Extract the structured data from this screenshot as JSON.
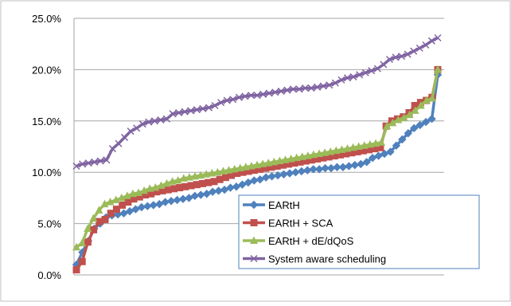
{
  "chart_data": {
    "type": "line",
    "title": "",
    "xlabel": "",
    "ylabel": "",
    "ylim": [
      0,
      0.25
    ],
    "yticks": [
      0,
      0.05,
      0.1,
      0.15,
      0.2,
      0.25
    ],
    "ytick_labels": [
      "0.0%",
      "5.0%",
      "10.0%",
      "15.0%",
      "20.0%",
      "25.0%"
    ],
    "grid": "horizontal major",
    "legend_position": "bottom-right",
    "series": [
      {
        "name": "EARtH",
        "color": "#4F81BD",
        "marker": "diamond",
        "values": [
          0.01,
          0.022,
          0.033,
          0.045,
          0.05,
          0.056,
          0.058,
          0.059,
          0.06,
          0.062,
          0.064,
          0.066,
          0.067,
          0.068,
          0.069,
          0.071,
          0.072,
          0.073,
          0.074,
          0.075,
          0.077,
          0.078,
          0.079,
          0.081,
          0.082,
          0.083,
          0.085,
          0.086,
          0.088,
          0.09,
          0.092,
          0.093,
          0.095,
          0.096,
          0.097,
          0.098,
          0.099,
          0.1,
          0.101,
          0.102,
          0.103,
          0.103,
          0.104,
          0.104,
          0.105,
          0.105,
          0.106,
          0.107,
          0.108,
          0.11,
          0.114,
          0.116,
          0.118,
          0.12,
          0.126,
          0.132,
          0.138,
          0.143,
          0.146,
          0.149,
          0.152,
          0.195
        ]
      },
      {
        "name": "EARtH + SCA",
        "color": "#C0504D",
        "marker": "square",
        "values": [
          0.005,
          0.013,
          0.032,
          0.044,
          0.052,
          0.054,
          0.06,
          0.064,
          0.068,
          0.071,
          0.074,
          0.076,
          0.078,
          0.079,
          0.081,
          0.082,
          0.083,
          0.084,
          0.085,
          0.086,
          0.087,
          0.088,
          0.089,
          0.09,
          0.091,
          0.093,
          0.095,
          0.097,
          0.099,
          0.1,
          0.101,
          0.102,
          0.103,
          0.104,
          0.105,
          0.106,
          0.107,
          0.108,
          0.109,
          0.11,
          0.111,
          0.112,
          0.113,
          0.114,
          0.115,
          0.116,
          0.117,
          0.118,
          0.119,
          0.12,
          0.121,
          0.122,
          0.123,
          0.124,
          0.145,
          0.15,
          0.152,
          0.154,
          0.158,
          0.165,
          0.168,
          0.17,
          0.173,
          0.2
        ]
      },
      {
        "name": "EARtH + dE/dQoS",
        "color": "#9BBB59",
        "marker": "triangle",
        "values": [
          0.027,
          0.031,
          0.045,
          0.055,
          0.063,
          0.069,
          0.071,
          0.073,
          0.075,
          0.077,
          0.079,
          0.08,
          0.082,
          0.084,
          0.085,
          0.087,
          0.089,
          0.091,
          0.092,
          0.094,
          0.095,
          0.096,
          0.097,
          0.098,
          0.099,
          0.1,
          0.101,
          0.102,
          0.103,
          0.104,
          0.105,
          0.106,
          0.107,
          0.108,
          0.109,
          0.11,
          0.111,
          0.112,
          0.113,
          0.114,
          0.115,
          0.116,
          0.117,
          0.118,
          0.119,
          0.12,
          0.121,
          0.122,
          0.123,
          0.124,
          0.125,
          0.126,
          0.127,
          0.128,
          0.129,
          0.145,
          0.148,
          0.151,
          0.153,
          0.156,
          0.16,
          0.165,
          0.17,
          0.172,
          0.2
        ]
      },
      {
        "name": "System aware scheduling",
        "color": "#8064A2",
        "marker": "x",
        "values": [
          0.106,
          0.108,
          0.109,
          0.11,
          0.111,
          0.112,
          0.123,
          0.128,
          0.134,
          0.14,
          0.143,
          0.147,
          0.149,
          0.15,
          0.151,
          0.152,
          0.157,
          0.158,
          0.159,
          0.16,
          0.161,
          0.162,
          0.163,
          0.165,
          0.168,
          0.17,
          0.171,
          0.173,
          0.174,
          0.175,
          0.175,
          0.176,
          0.177,
          0.178,
          0.179,
          0.18,
          0.181,
          0.181,
          0.182,
          0.182,
          0.183,
          0.184,
          0.185,
          0.187,
          0.19,
          0.192,
          0.193,
          0.195,
          0.197,
          0.199,
          0.201,
          0.205,
          0.21,
          0.212,
          0.213,
          0.215,
          0.218,
          0.221,
          0.224,
          0.228,
          0.231
        ]
      }
    ]
  }
}
